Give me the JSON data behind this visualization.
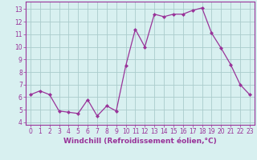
{
  "x": [
    0,
    1,
    2,
    3,
    4,
    5,
    6,
    7,
    8,
    9,
    10,
    11,
    12,
    13,
    14,
    15,
    16,
    17,
    18,
    19,
    20,
    21,
    22,
    23
  ],
  "y": [
    6.2,
    6.5,
    6.2,
    4.9,
    4.8,
    4.7,
    5.8,
    4.5,
    5.3,
    4.9,
    8.5,
    11.4,
    10.0,
    12.6,
    12.4,
    12.6,
    12.6,
    12.9,
    13.1,
    11.1,
    9.9,
    8.6,
    7.0,
    6.2
  ],
  "line_color": "#993399",
  "marker": "D",
  "marker_size": 2.0,
  "linewidth": 0.9,
  "xlabel": "Windchill (Refroidissement éolien,°C)",
  "xlabel_fontsize": 6.5,
  "ylabel_ticks": [
    4,
    5,
    6,
    7,
    8,
    9,
    10,
    11,
    12,
    13
  ],
  "xlim": [
    -0.5,
    23.5
  ],
  "ylim": [
    3.8,
    13.6
  ],
  "bg_color": "#d8f0f0",
  "grid_color": "#aacccc",
  "spine_color": "#993399",
  "tick_color": "#993399",
  "tick_label_color": "#993399",
  "tick_fontsize": 5.5,
  "xticks": [
    0,
    1,
    2,
    3,
    4,
    5,
    6,
    7,
    8,
    9,
    10,
    11,
    12,
    13,
    14,
    15,
    16,
    17,
    18,
    19,
    20,
    21,
    22,
    23
  ]
}
